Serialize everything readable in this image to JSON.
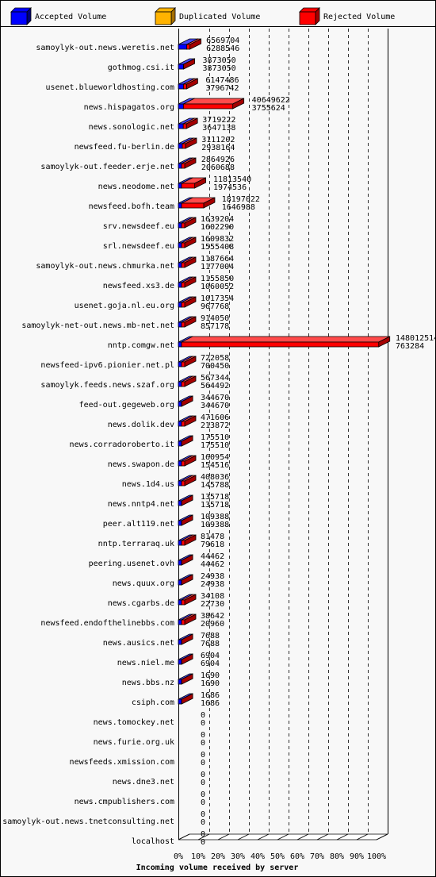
{
  "chart_data": {
    "type": "bar",
    "orientation": "horizontal",
    "style": "3d-stacked",
    "xlabel": "Incoming volume received by server",
    "ylabel": "",
    "xlim": [
      0,
      100
    ],
    "x_ticks": [
      "0%",
      "10%",
      "20%",
      "30%",
      "40%",
      "50%",
      "60%",
      "70%",
      "80%",
      "90%",
      "100%"
    ],
    "grid": "vertical-dashed",
    "legend_position": "top",
    "legend": [
      {
        "name": "Accepted Volume",
        "color": "#0000ff"
      },
      {
        "name": "Duplicated Volume",
        "color": "#ffb300"
      },
      {
        "name": "Rejected Volume",
        "color": "#ff0000"
      }
    ],
    "rows": [
      {
        "name": "samoylyk-out.news.weretis.net",
        "total": 6569704,
        "accepted": 6288546
      },
      {
        "name": "gothmog.csi.it",
        "total": 3873050,
        "accepted": 3873050
      },
      {
        "name": "usenet.blueworldhosting.com",
        "total": 6147486,
        "accepted": 3796742
      },
      {
        "name": "news.hispagatos.org",
        "total": 40649622,
        "accepted": 3755624
      },
      {
        "name": "news.sonologic.net",
        "total": 3719222,
        "accepted": 3647138
      },
      {
        "name": "newsfeed.fu-berlin.de",
        "total": 3111202,
        "accepted": 2938164
      },
      {
        "name": "samoylyk-out.feeder.erje.net",
        "total": 2864926,
        "accepted": 2060688
      },
      {
        "name": "news.neodome.net",
        "total": 11813540,
        "accepted": 1974536
      },
      {
        "name": "newsfeed.bofh.team",
        "total": 18197022,
        "accepted": 1646988
      },
      {
        "name": "srv.newsdeef.eu",
        "total": 1639204,
        "accepted": 1602290
      },
      {
        "name": "srl.newsdeef.eu",
        "total": 1609832,
        "accepted": 1555408
      },
      {
        "name": "samoylyk-out.news.chmurka.net",
        "total": 1187664,
        "accepted": 1177004
      },
      {
        "name": "newsfeed.xs3.de",
        "total": 1155850,
        "accepted": 1060052
      },
      {
        "name": "usenet.goja.nl.eu.org",
        "total": 1017354,
        "accepted": 967768
      },
      {
        "name": "samoylyk-net-out.news.mb-net.net",
        "total": 914050,
        "accepted": 857178
      },
      {
        "name": "nntp.comgw.net",
        "total": 148012514,
        "accepted": 763284
      },
      {
        "name": "newsfeed-ipv6.pionier.net.pl",
        "total": 722058,
        "accepted": 700450
      },
      {
        "name": "samoylyk.feeds.news.szaf.org",
        "total": 567344,
        "accepted": 564492
      },
      {
        "name": "feed-out.gegeweb.org",
        "total": 344670,
        "accepted": 344670
      },
      {
        "name": "news.dolik.dev",
        "total": 471606,
        "accepted": 213872
      },
      {
        "name": "news.corradoroberto.it",
        "total": 175510,
        "accepted": 175510
      },
      {
        "name": "news.swapon.de",
        "total": 160954,
        "accepted": 154516
      },
      {
        "name": "news.1d4.us",
        "total": 408036,
        "accepted": 145788
      },
      {
        "name": "news.nntp4.net",
        "total": 135718,
        "accepted": 135718
      },
      {
        "name": "peer.alt119.net",
        "total": 109388,
        "accepted": 109388
      },
      {
        "name": "nntp.terraraq.uk",
        "total": 81478,
        "accepted": 79618
      },
      {
        "name": "peering.usenet.ovh",
        "total": 44462,
        "accepted": 44462
      },
      {
        "name": "news.quux.org",
        "total": 24938,
        "accepted": 24938
      },
      {
        "name": "news.cgarbs.de",
        "total": 34108,
        "accepted": 22730
      },
      {
        "name": "newsfeed.endofthelinebbs.com",
        "total": 38642,
        "accepted": 20960
      },
      {
        "name": "news.ausics.net",
        "total": 7688,
        "accepted": 7688
      },
      {
        "name": "news.niel.me",
        "total": 6904,
        "accepted": 6904
      },
      {
        "name": "news.bbs.nz",
        "total": 1690,
        "accepted": 1690
      },
      {
        "name": "csiph.com",
        "total": 1686,
        "accepted": 1686
      },
      {
        "name": "news.tomockey.net",
        "total": 0,
        "accepted": 0
      },
      {
        "name": "news.furie.org.uk",
        "total": 0,
        "accepted": 0
      },
      {
        "name": "newsfeeds.xmission.com",
        "total": 0,
        "accepted": 0
      },
      {
        "name": "news.dne3.net",
        "total": 0,
        "accepted": 0
      },
      {
        "name": "news.cmpublishers.com",
        "total": 0,
        "accepted": 0
      },
      {
        "name": "samoylyk-out.news.tnetconsulting.net",
        "total": 0,
        "accepted": 0
      },
      {
        "name": "localhost",
        "total": 0,
        "accepted": 0
      }
    ]
  }
}
